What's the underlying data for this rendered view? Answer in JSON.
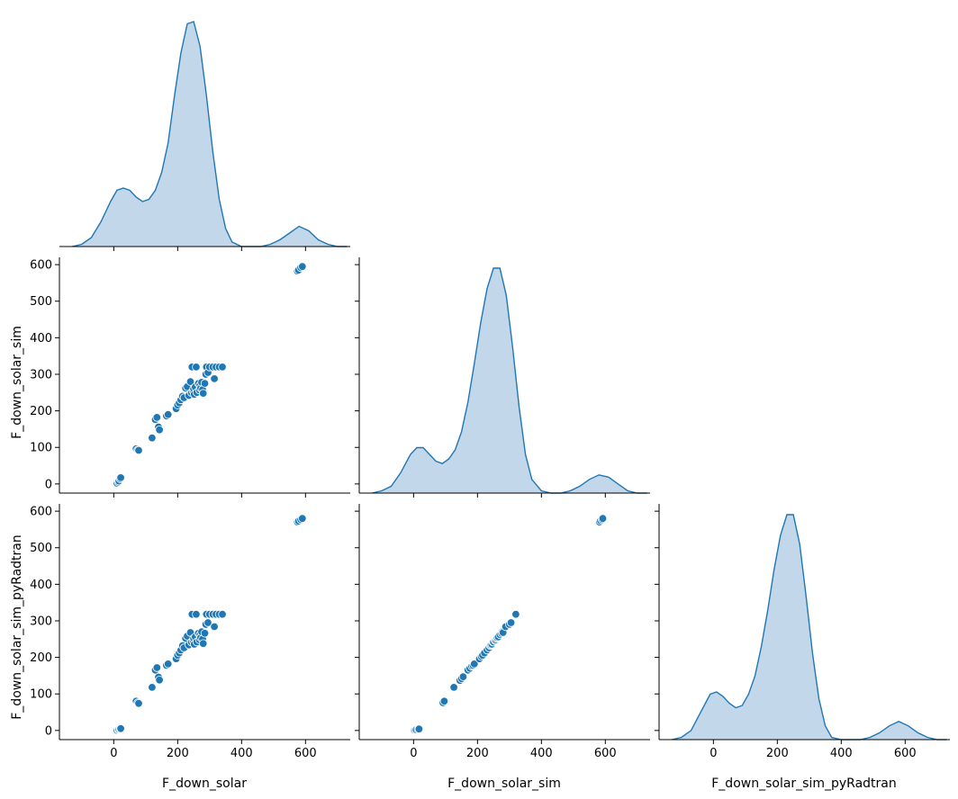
{
  "colors": {
    "line": "#1f77b4",
    "fill": "#c3d7ea",
    "point": "#1f77b4",
    "point_edge": "#ffffff",
    "axis": "#000000"
  },
  "chart_data": {
    "type": "pairplot",
    "variables": [
      "F_down_solar",
      "F_down_solar_sim",
      "F_down_solar_sim_pyRadtran"
    ],
    "corner": true,
    "grid": false,
    "xlim": [
      -170,
      740
    ],
    "ylim": [
      -25,
      620
    ],
    "x_ticks": [
      0,
      200,
      400,
      600
    ],
    "y_ticks": [
      0,
      100,
      200,
      300,
      400,
      500,
      600
    ],
    "x_tick_labels": [
      "0",
      "200",
      "400",
      "600"
    ],
    "y_tick_labels": [
      "0",
      "100",
      "200",
      "300",
      "400",
      "500",
      "600"
    ],
    "diagonal": [
      {
        "variable": "F_down_solar",
        "kind": "kde",
        "x": [
          -130,
          -100,
          -70,
          -40,
          -10,
          10,
          30,
          50,
          70,
          90,
          110,
          130,
          150,
          170,
          190,
          210,
          230,
          250,
          270,
          290,
          310,
          330,
          350,
          370,
          400,
          430,
          460,
          490,
          520,
          550,
          580,
          610,
          640,
          670,
          700,
          730
        ],
        "density": [
          0.0,
          0.01,
          0.04,
          0.11,
          0.2,
          0.25,
          0.26,
          0.25,
          0.22,
          0.2,
          0.21,
          0.25,
          0.33,
          0.46,
          0.67,
          0.86,
          0.99,
          1.0,
          0.89,
          0.67,
          0.42,
          0.21,
          0.08,
          0.02,
          0.0,
          0.0,
          0.0,
          0.01,
          0.03,
          0.06,
          0.09,
          0.07,
          0.03,
          0.01,
          0.0,
          0.0
        ]
      },
      {
        "variable": "F_down_solar_sim",
        "kind": "kde",
        "x": [
          -130,
          -100,
          -70,
          -40,
          -10,
          10,
          30,
          50,
          70,
          90,
          110,
          130,
          150,
          170,
          190,
          210,
          230,
          250,
          270,
          290,
          310,
          330,
          350,
          370,
          400,
          430,
          460,
          490,
          520,
          550,
          580,
          610,
          640,
          670,
          700,
          730
        ],
        "density": [
          0.0,
          0.01,
          0.03,
          0.09,
          0.17,
          0.2,
          0.2,
          0.17,
          0.14,
          0.13,
          0.15,
          0.19,
          0.27,
          0.4,
          0.57,
          0.75,
          0.9,
          0.99,
          0.99,
          0.87,
          0.64,
          0.38,
          0.17,
          0.06,
          0.01,
          0.0,
          0.0,
          0.01,
          0.03,
          0.06,
          0.08,
          0.07,
          0.04,
          0.01,
          0.0,
          0.0
        ]
      },
      {
        "variable": "F_down_solar_sim_pyRadtran",
        "kind": "kde",
        "x": [
          -130,
          -100,
          -70,
          -40,
          -10,
          10,
          30,
          50,
          70,
          90,
          110,
          130,
          150,
          170,
          190,
          210,
          230,
          250,
          270,
          290,
          310,
          330,
          350,
          370,
          400,
          430,
          460,
          490,
          520,
          550,
          580,
          610,
          640,
          670,
          700,
          730
        ],
        "density": [
          0.0,
          0.01,
          0.04,
          0.12,
          0.2,
          0.21,
          0.19,
          0.16,
          0.14,
          0.15,
          0.2,
          0.28,
          0.41,
          0.57,
          0.75,
          0.9,
          0.99,
          0.99,
          0.86,
          0.63,
          0.38,
          0.18,
          0.06,
          0.01,
          0.0,
          0.0,
          0.0,
          0.01,
          0.03,
          0.06,
          0.08,
          0.06,
          0.03,
          0.01,
          0.0,
          0.0
        ]
      }
    ],
    "scatter": [
      {
        "x_var": "F_down_solar",
        "y_var": "F_down_solar_sim",
        "points": [
          [
            10,
            2
          ],
          [
            14,
            5
          ],
          [
            16,
            8
          ],
          [
            20,
            14
          ],
          [
            22,
            17
          ],
          [
            70,
            96
          ],
          [
            75,
            93
          ],
          [
            78,
            92
          ],
          [
            120,
            126
          ],
          [
            130,
            176
          ],
          [
            135,
            182
          ],
          [
            140,
            156
          ],
          [
            143,
            148
          ],
          [
            165,
            186
          ],
          [
            170,
            190
          ],
          [
            195,
            206
          ],
          [
            200,
            216
          ],
          [
            205,
            222
          ],
          [
            210,
            230
          ],
          [
            215,
            240
          ],
          [
            220,
            236
          ],
          [
            225,
            262
          ],
          [
            230,
            266
          ],
          [
            235,
            242
          ],
          [
            240,
            280
          ],
          [
            243,
            250
          ],
          [
            245,
            320
          ],
          [
            248,
            255
          ],
          [
            250,
            260
          ],
          [
            252,
            245
          ],
          [
            255,
            265
          ],
          [
            258,
            320
          ],
          [
            260,
            250
          ],
          [
            265,
            275
          ],
          [
            268,
            257
          ],
          [
            270,
            270
          ],
          [
            272,
            262
          ],
          [
            275,
            278
          ],
          [
            278,
            258
          ],
          [
            280,
            248
          ],
          [
            285,
            275
          ],
          [
            288,
            300
          ],
          [
            290,
            320
          ],
          [
            295,
            305
          ],
          [
            300,
            320
          ],
          [
            310,
            320
          ],
          [
            315,
            288
          ],
          [
            320,
            320
          ],
          [
            330,
            320
          ],
          [
            340,
            320
          ],
          [
            575,
            582
          ],
          [
            578,
            585
          ],
          [
            585,
            592
          ],
          [
            590,
            595
          ]
        ]
      },
      {
        "x_var": "F_down_solar",
        "y_var": "F_down_solar_sim_pyRadtran",
        "points": [
          [
            10,
            0
          ],
          [
            14,
            2
          ],
          [
            16,
            3
          ],
          [
            20,
            4
          ],
          [
            22,
            5
          ],
          [
            70,
            80
          ],
          [
            75,
            76
          ],
          [
            78,
            74
          ],
          [
            120,
            118
          ],
          [
            130,
            165
          ],
          [
            135,
            172
          ],
          [
            140,
            146
          ],
          [
            143,
            138
          ],
          [
            165,
            178
          ],
          [
            170,
            182
          ],
          [
            195,
            196
          ],
          [
            200,
            206
          ],
          [
            205,
            212
          ],
          [
            210,
            220
          ],
          [
            215,
            232
          ],
          [
            220,
            226
          ],
          [
            225,
            252
          ],
          [
            230,
            258
          ],
          [
            235,
            234
          ],
          [
            240,
            268
          ],
          [
            243,
            242
          ],
          [
            245,
            318
          ],
          [
            248,
            246
          ],
          [
            250,
            252
          ],
          [
            252,
            236
          ],
          [
            255,
            256
          ],
          [
            258,
            318
          ],
          [
            260,
            242
          ],
          [
            265,
            266
          ],
          [
            268,
            248
          ],
          [
            270,
            262
          ],
          [
            272,
            254
          ],
          [
            275,
            270
          ],
          [
            278,
            250
          ],
          [
            280,
            238
          ],
          [
            285,
            266
          ],
          [
            288,
            290
          ],
          [
            290,
            318
          ],
          [
            295,
            295
          ],
          [
            300,
            318
          ],
          [
            310,
            318
          ],
          [
            315,
            284
          ],
          [
            320,
            318
          ],
          [
            330,
            318
          ],
          [
            340,
            318
          ],
          [
            575,
            570
          ],
          [
            578,
            573
          ],
          [
            585,
            577
          ],
          [
            590,
            580
          ]
        ]
      },
      {
        "x_var": "F_down_solar_sim",
        "y_var": "F_down_solar_sim_pyRadtran",
        "points": [
          [
            2,
            0
          ],
          [
            5,
            1
          ],
          [
            8,
            2
          ],
          [
            14,
            3
          ],
          [
            17,
            4
          ],
          [
            92,
            76
          ],
          [
            96,
            80
          ],
          [
            126,
            118
          ],
          [
            145,
            137
          ],
          [
            150,
            142
          ],
          [
            155,
            147
          ],
          [
            170,
            165
          ],
          [
            176,
            170
          ],
          [
            182,
            176
          ],
          [
            186,
            178
          ],
          [
            190,
            182
          ],
          [
            206,
            196
          ],
          [
            212,
            202
          ],
          [
            216,
            206
          ],
          [
            222,
            212
          ],
          [
            230,
            220
          ],
          [
            236,
            226
          ],
          [
            240,
            232
          ],
          [
            242,
            234
          ],
          [
            245,
            236
          ],
          [
            248,
            242
          ],
          [
            250,
            242
          ],
          [
            255,
            246
          ],
          [
            257,
            248
          ],
          [
            260,
            252
          ],
          [
            262,
            254
          ],
          [
            265,
            256
          ],
          [
            270,
            262
          ],
          [
            275,
            266
          ],
          [
            278,
            270
          ],
          [
            280,
            268
          ],
          [
            288,
            284
          ],
          [
            300,
            290
          ],
          [
            305,
            295
          ],
          [
            320,
            318
          ],
          [
            582,
            570
          ],
          [
            585,
            574
          ],
          [
            590,
            577
          ],
          [
            592,
            580
          ]
        ]
      }
    ]
  }
}
